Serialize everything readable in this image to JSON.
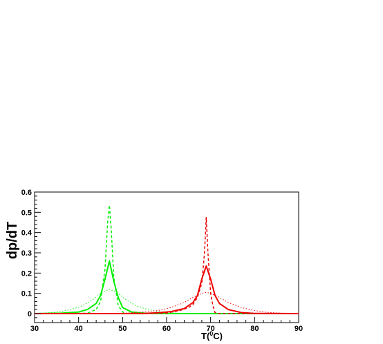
{
  "chart_data": {
    "type": "line",
    "title": "",
    "xlabel": "T(",
    "xlabel_sup": "0",
    "xlabel_suffix": "C)",
    "ylabel": "dp/dT",
    "xlim": [
      30,
      90
    ],
    "ylim": [
      -0.03,
      0.6
    ],
    "grid": false,
    "legend": "none",
    "x_ticks": [
      30,
      40,
      50,
      60,
      70,
      80,
      90
    ],
    "y_ticks": [
      0,
      0.1,
      0.2,
      0.3,
      0.4,
      0.5,
      0.6
    ],
    "series": [
      {
        "color": "#00ee00",
        "dash": "solid",
        "width": 2,
        "points": [
          [
            30,
            0
          ],
          [
            36,
            0.002
          ],
          [
            40,
            0.008
          ],
          [
            42,
            0.02
          ],
          [
            44,
            0.05
          ],
          [
            45,
            0.09
          ],
          [
            46,
            0.17
          ],
          [
            47,
            0.26
          ],
          [
            48,
            0.16
          ],
          [
            49,
            0.08
          ],
          [
            50,
            0.03
          ],
          [
            52,
            0.008
          ],
          [
            55,
            0.002
          ],
          [
            58,
            0
          ],
          [
            90,
            0
          ]
        ]
      },
      {
        "color": "#00ee00",
        "dash": "dash",
        "width": 1.5,
        "points": [
          [
            30,
            0
          ],
          [
            38,
            0
          ],
          [
            42,
            0.002
          ],
          [
            44,
            0.02
          ],
          [
            45,
            0.06
          ],
          [
            46,
            0.22
          ],
          [
            46.6,
            0.45
          ],
          [
            47,
            0.535
          ],
          [
            47.4,
            0.42
          ],
          [
            48,
            0.18
          ],
          [
            49,
            0.04
          ],
          [
            50,
            0.008
          ],
          [
            51,
            0
          ],
          [
            90,
            0
          ]
        ]
      },
      {
        "color": "#00ee00",
        "dash": "dot",
        "width": 1,
        "points": [
          [
            30,
            0
          ],
          [
            33,
            0.004
          ],
          [
            36,
            0.01
          ],
          [
            39,
            0.025
          ],
          [
            41,
            0.04
          ],
          [
            43,
            0.065
          ],
          [
            45,
            0.1
          ],
          [
            47,
            0.12
          ],
          [
            49,
            0.1
          ],
          [
            51,
            0.065
          ],
          [
            53,
            0.04
          ],
          [
            55,
            0.025
          ],
          [
            58,
            0.01
          ],
          [
            61,
            0.004
          ],
          [
            64,
            0.001
          ],
          [
            90,
            0
          ]
        ]
      },
      {
        "color": "#ee0000",
        "dash": "solid",
        "width": 2,
        "points": [
          [
            30,
            0
          ],
          [
            50,
            0
          ],
          [
            55,
            0.001
          ],
          [
            58,
            0.004
          ],
          [
            61,
            0.01
          ],
          [
            64,
            0.025
          ],
          [
            66,
            0.055
          ],
          [
            67,
            0.09
          ],
          [
            68,
            0.17
          ],
          [
            69,
            0.235
          ],
          [
            70,
            0.17
          ],
          [
            71,
            0.09
          ],
          [
            72,
            0.05
          ],
          [
            74,
            0.02
          ],
          [
            77,
            0.005
          ],
          [
            80,
            0.001
          ],
          [
            90,
            0
          ]
        ]
      },
      {
        "color": "#ee0000",
        "dash": "dash",
        "width": 1.5,
        "points": [
          [
            30,
            0
          ],
          [
            55,
            0
          ],
          [
            60,
            0.003
          ],
          [
            63,
            0.015
          ],
          [
            65,
            0.03
          ],
          [
            66,
            0.045
          ],
          [
            67,
            0.08
          ],
          [
            68,
            0.15
          ],
          [
            68.6,
            0.3
          ],
          [
            69,
            0.475
          ],
          [
            69.4,
            0.3
          ],
          [
            70,
            0.1
          ],
          [
            70.5,
            0.04
          ],
          [
            71,
            0.005
          ],
          [
            72,
            0
          ],
          [
            90,
            0
          ]
        ]
      },
      {
        "color": "#ee0000",
        "dash": "dot",
        "width": 1,
        "points": [
          [
            30,
            0
          ],
          [
            50,
            0.002
          ],
          [
            55,
            0.008
          ],
          [
            58,
            0.015
          ],
          [
            61,
            0.03
          ],
          [
            64,
            0.055
          ],
          [
            66,
            0.08
          ],
          [
            68,
            0.1
          ],
          [
            69,
            0.105
          ],
          [
            70,
            0.1
          ],
          [
            72,
            0.08
          ],
          [
            74,
            0.055
          ],
          [
            77,
            0.03
          ],
          [
            80,
            0.015
          ],
          [
            83,
            0.006
          ],
          [
            86,
            0.002
          ],
          [
            90,
            0
          ]
        ]
      }
    ]
  }
}
